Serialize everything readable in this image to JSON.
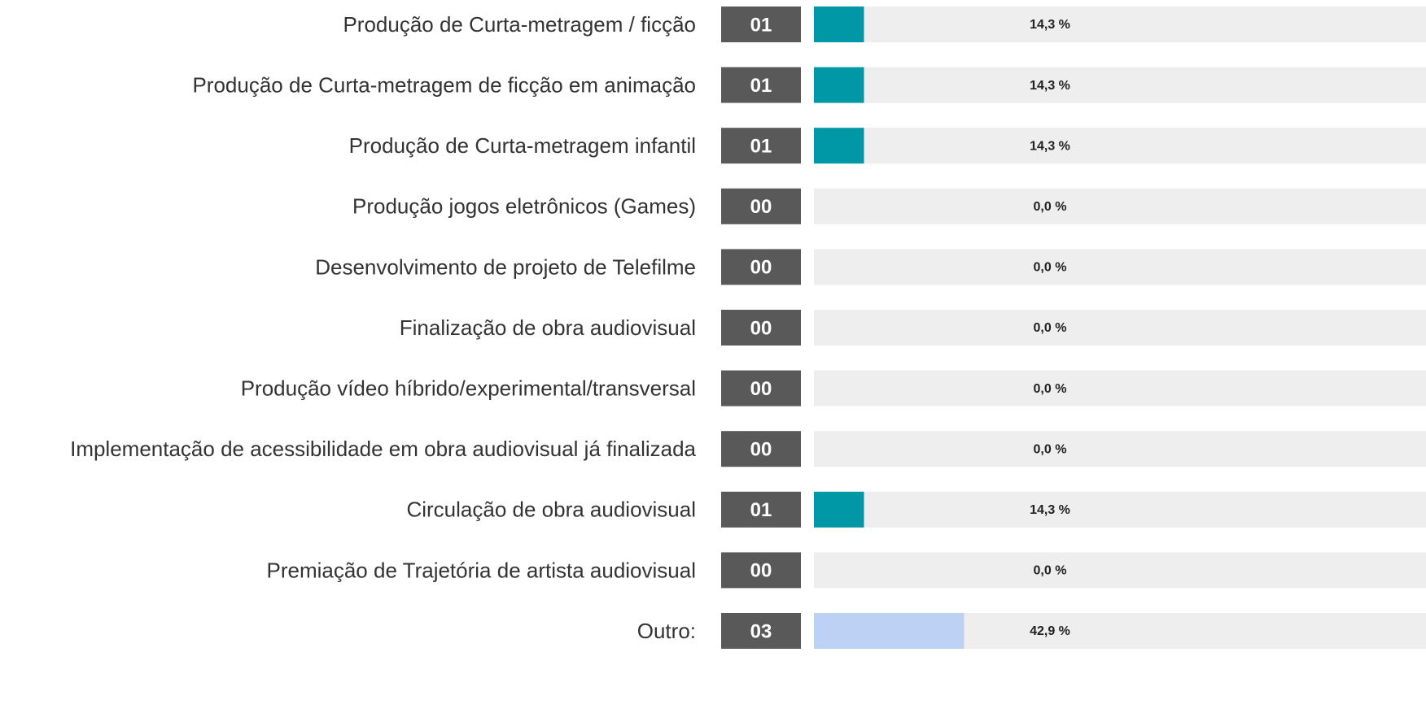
{
  "chart_data": {
    "type": "bar",
    "categories": [
      "Produção de Curta-metragem / ficção",
      "Produção de Curta-metragem de ficção em animação",
      "Produção de Curta-metragem infantil",
      "Produção jogos eletrônicos (Games)",
      "Desenvolvimento de projeto de Telefilme",
      "Finalização de obra audiovisual",
      "Produção vídeo híbrido/experimental/transversal",
      "Implementação de acessibilidade em obra audiovisual já finalizada",
      "Circulação de obra audiovisual",
      "Premiação de Trajetória de artista audiovisual",
      "Outro:"
    ],
    "counts": [
      1,
      1,
      1,
      0,
      0,
      0,
      0,
      0,
      1,
      0,
      3
    ],
    "count_labels": [
      "01",
      "01",
      "01",
      "00",
      "00",
      "00",
      "00",
      "00",
      "01",
      "00",
      "03"
    ],
    "values": [
      14.3,
      14.3,
      14.3,
      0.0,
      0.0,
      0.0,
      0.0,
      0.0,
      14.3,
      0.0,
      42.9
    ],
    "value_labels": [
      "14,3 %",
      "14,3 %",
      "14,3 %",
      "0,0 %",
      "0,0 %",
      "0,0 %",
      "0,0 %",
      "0,0 %",
      "14,3 %",
      "0,0 %",
      "42,9 %"
    ],
    "colors": [
      "#0097a7",
      "#0097a7",
      "#0097a7",
      "#0097a7",
      "#0097a7",
      "#0097a7",
      "#0097a7",
      "#0097a7",
      "#0097a7",
      "#0097a7",
      "#bdd1f5"
    ],
    "xlim": [
      0,
      100
    ]
  }
}
